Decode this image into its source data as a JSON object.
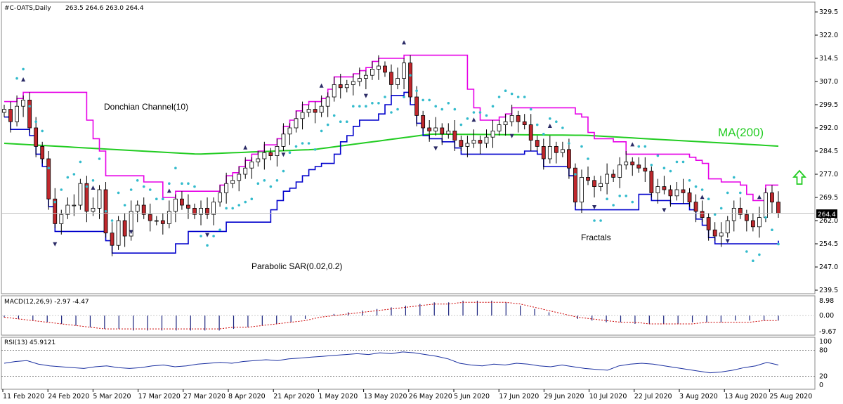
{
  "header": {
    "symbol": "#C-OATS,Daily",
    "ohlc": "263.5 264.6 263.0 264.4"
  },
  "price_axis": {
    "ticks": [
      "329.5",
      "322.0",
      "314.5",
      "307.0",
      "299.5",
      "292.0",
      "284.5",
      "277.0",
      "269.5",
      "262.0",
      "254.5",
      "247.0",
      "239.5"
    ],
    "current_price": "264.4"
  },
  "labels": {
    "donchian": "Donchian Channel(10)",
    "sar": "Parabolic SAR(0.02,0.2)",
    "fractals": "Fractals",
    "ma": "MA(200)"
  },
  "macd": {
    "label": "MACD(12,26,9) -2.97 -4.47",
    "ticks": [
      "8.98",
      "0.00",
      "-9.67"
    ]
  },
  "rsi": {
    "label": "RSI(13) 45.9121",
    "ticks": [
      "100",
      "80",
      "20",
      "0"
    ]
  },
  "date_axis": {
    "ticks": [
      "11 Feb 2020",
      "24 Feb 2020",
      "5 Mar 2020",
      "17 Mar 2020",
      "27 Mar 2020",
      "8 Apr 2020",
      "21 Apr 2020",
      "1 May 2020",
      "13 May 2020",
      "26 May 2020",
      "5 Jun 2020",
      "17 Jun 2020",
      "29 Jun 2020",
      "10 Jul 2020",
      "22 Jul 2020",
      "3 Aug 2020",
      "13 Aug 2020",
      "25 Aug 2020"
    ]
  },
  "colors": {
    "bull": "#ffffff",
    "bear": "#c0282d",
    "donchian_upper": "#e600e6",
    "donchian_lower": "#0000cc",
    "ma": "#22cc22",
    "sar": "#33bbcc",
    "fractal": "#2b2b66",
    "macd": "#1a237e",
    "signal": "#cc0000",
    "rsi": "#1a2fa0",
    "up_arrow": "#22cc22"
  },
  "chart_data": {
    "type": "candlestick",
    "title": "#C-OATS,Daily",
    "ylim": [
      239.5,
      329.5
    ],
    "dates": [
      "11 Feb 2020",
      "24 Feb 2020",
      "5 Mar 2020",
      "17 Mar 2020",
      "27 Mar 2020",
      "8 Apr 2020",
      "21 Apr 2020",
      "1 May 2020",
      "13 May 2020",
      "26 May 2020",
      "5 Jun 2020",
      "17 Jun 2020",
      "29 Jun 2020",
      "10 Jul 2020",
      "22 Jul 2020",
      "3 Aug 2020",
      "13 Aug 2020",
      "25 Aug 2020"
    ],
    "close": [
      298,
      294,
      299,
      301,
      292,
      286,
      282,
      269,
      261,
      264,
      267,
      267,
      274,
      265,
      266,
      272,
      258,
      254,
      262,
      257,
      265,
      267,
      264,
      262,
      262,
      261,
      265,
      269,
      267,
      266,
      264,
      266,
      264,
      268,
      271,
      274,
      275,
      277,
      279,
      281,
      282,
      284,
      283,
      286,
      290,
      292,
      295,
      297,
      298,
      297,
      299,
      302,
      306,
      305,
      306,
      307,
      308,
      309,
      311,
      312,
      310,
      306,
      308,
      313,
      302,
      296,
      292,
      291,
      292,
      290,
      291,
      288,
      286,
      287,
      288,
      287,
      289,
      291,
      293,
      294,
      296,
      294,
      293,
      288,
      286,
      282,
      286,
      284,
      285,
      279,
      268,
      276,
      275,
      273,
      274,
      277,
      276,
      280,
      281,
      280,
      279,
      278,
      271,
      273,
      272,
      270,
      272,
      271,
      268,
      265,
      263,
      259,
      257,
      258,
      262,
      266,
      264,
      262,
      260,
      263,
      271,
      268,
      264.4
    ],
    "macd_hist": [
      -1,
      -2,
      -3,
      -4,
      -5,
      -6,
      -7,
      -8,
      -8,
      -9,
      -9,
      -9,
      -9,
      -9,
      -9,
      -9,
      -8,
      -7,
      -6,
      -5,
      -4,
      -2,
      0,
      1,
      2,
      3,
      4,
      5,
      6,
      7,
      8,
      8,
      9,
      9,
      9,
      8,
      6,
      4,
      2,
      0,
      -2,
      -3,
      -4,
      -4,
      -5,
      -5,
      -5,
      -5,
      -4,
      -4,
      -4,
      -3,
      -3,
      -3,
      -3
    ],
    "macd_signal": [
      -1,
      -2,
      -3,
      -4,
      -5,
      -6,
      -7,
      -8,
      -8,
      -8,
      -8,
      -8,
      -8,
      -8,
      -8,
      -8,
      -7,
      -7,
      -6,
      -5,
      -4,
      -3,
      -1,
      0,
      1,
      2,
      3,
      4,
      5,
      6,
      7,
      7,
      8,
      8,
      8,
      8,
      7,
      5,
      3,
      1,
      -1,
      -2,
      -3,
      -4,
      -4,
      -5,
      -5,
      -5,
      -5,
      -4,
      -4,
      -4,
      -4,
      -3,
      -3
    ],
    "rsi_values": [
      50,
      54,
      56,
      48,
      44,
      42,
      40,
      38,
      42,
      44,
      40,
      38,
      40,
      44,
      46,
      42,
      44,
      48,
      50,
      52,
      50,
      54,
      56,
      58,
      56,
      60,
      62,
      64,
      66,
      68,
      70,
      72,
      70,
      74,
      72,
      76,
      74,
      70,
      66,
      60,
      50,
      46,
      44,
      48,
      46,
      50,
      48,
      44,
      42,
      46,
      42,
      38,
      36,
      34,
      44,
      48,
      50,
      48,
      44,
      40,
      36,
      32,
      28,
      30,
      34,
      40,
      44,
      52,
      46
    ],
    "levels": {
      "rsi": [
        80,
        20
      ]
    }
  }
}
